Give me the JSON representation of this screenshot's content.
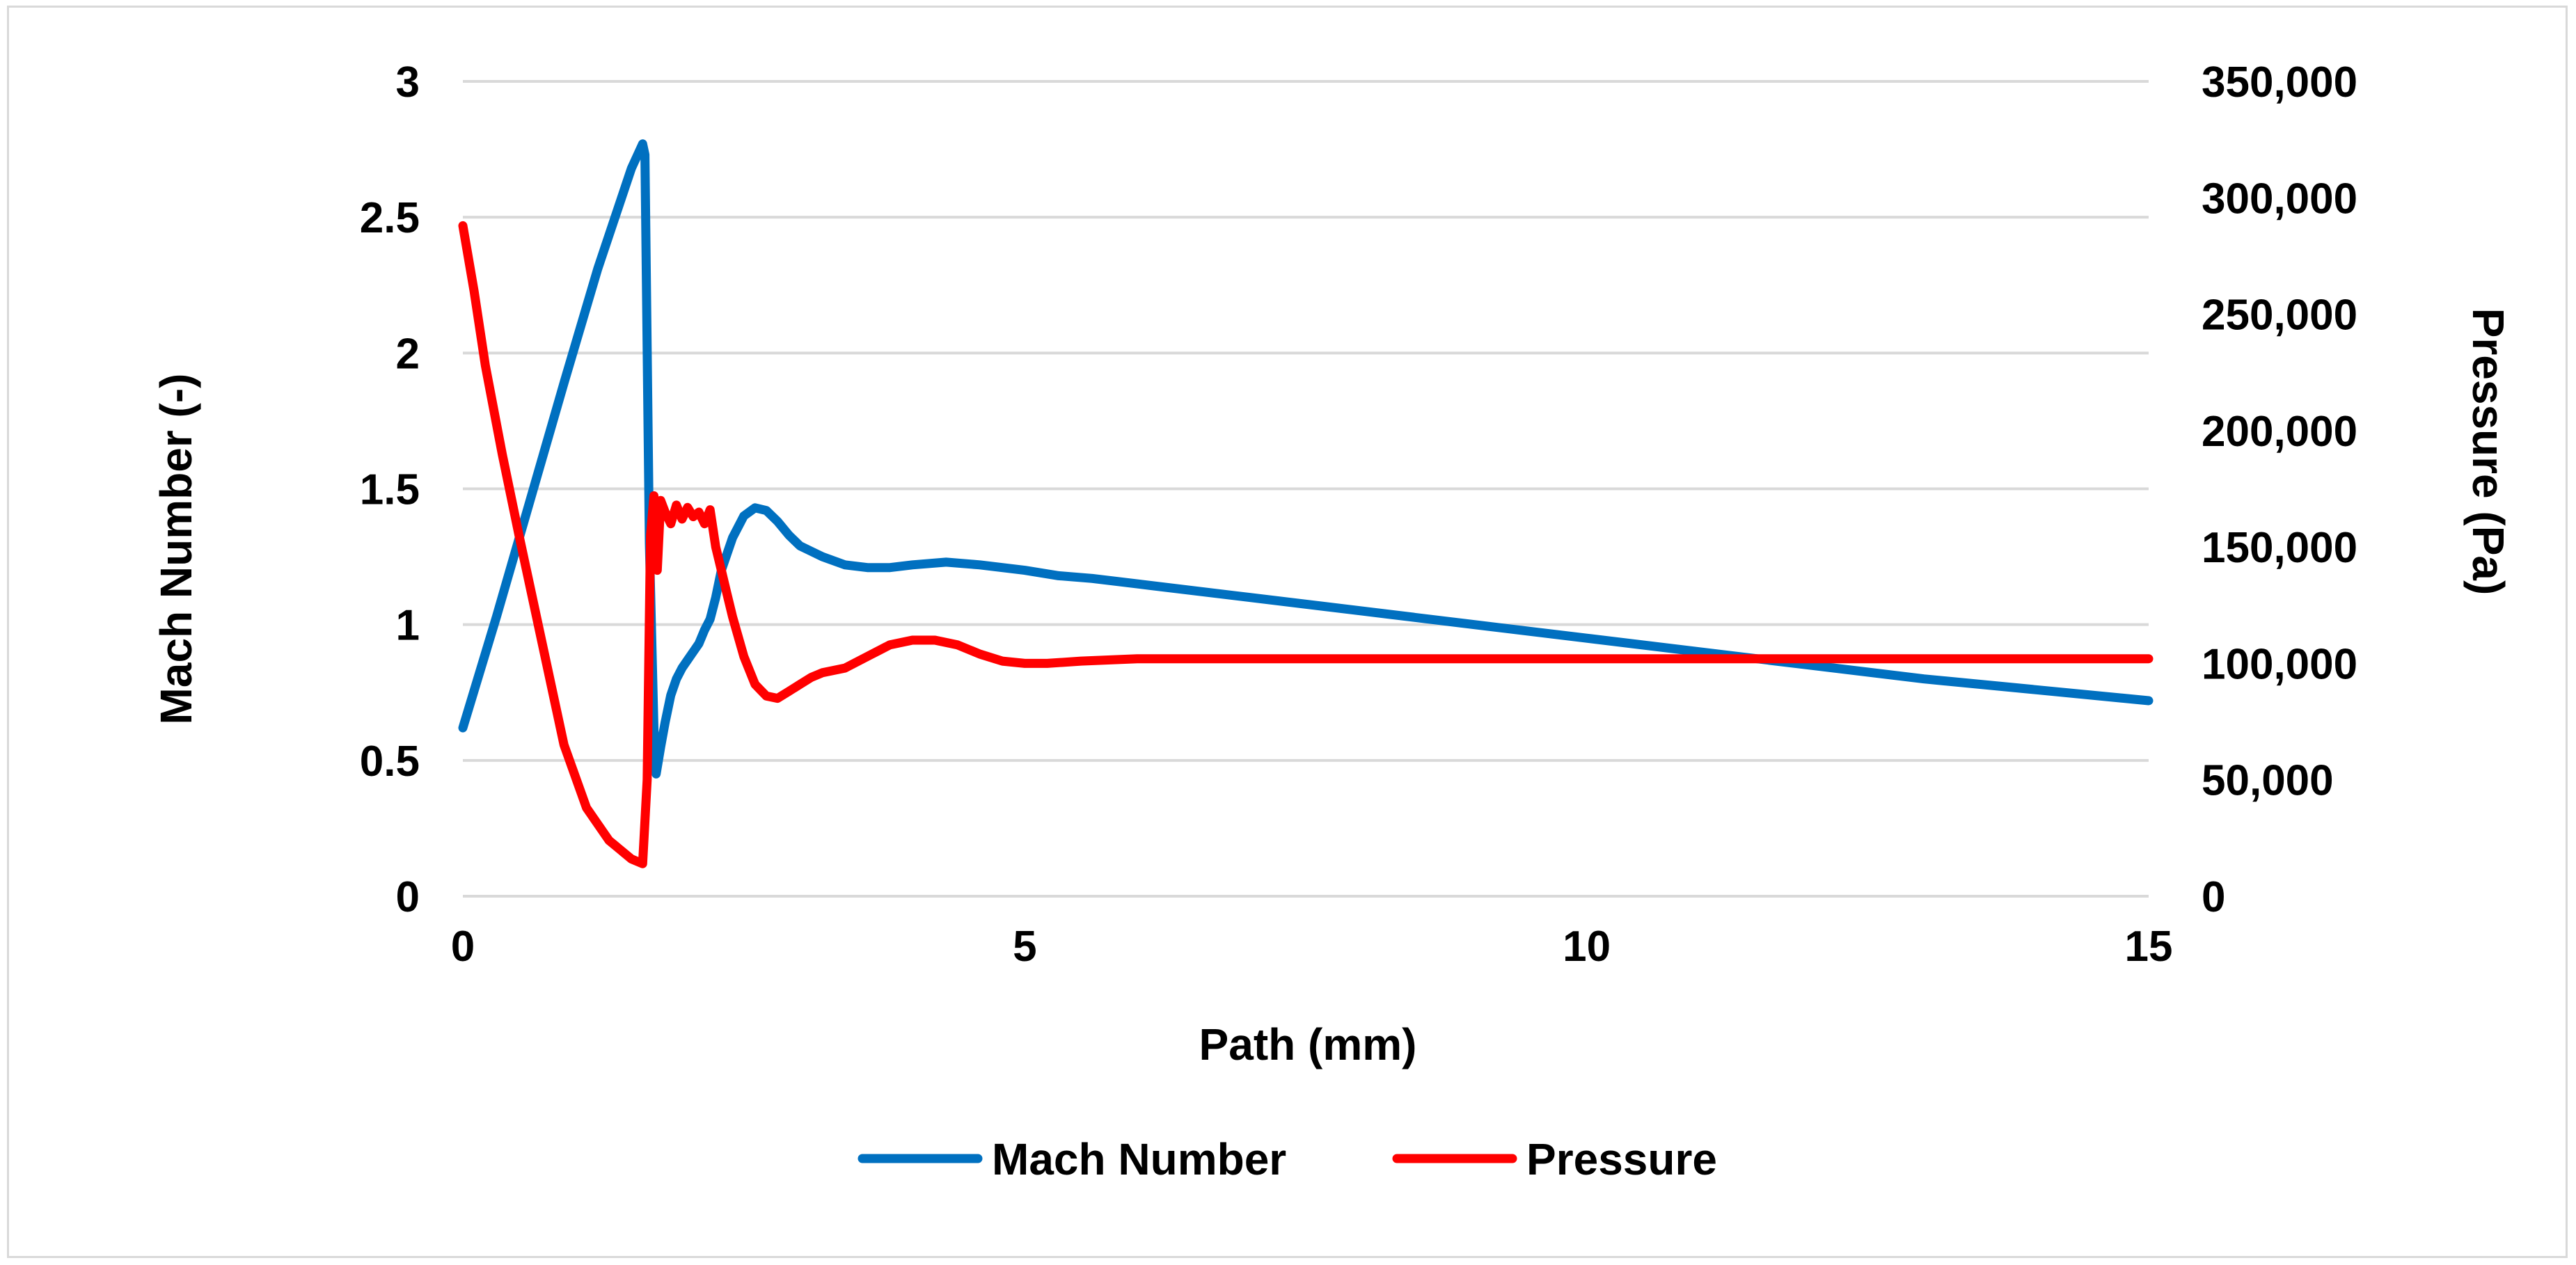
{
  "chart_data": {
    "type": "line",
    "title": "",
    "xlabel": "Path (mm)",
    "ylabel": "Mach Number (-)",
    "y2label": "Pressure (Pa)",
    "xlim": [
      0,
      15
    ],
    "ylim": [
      0,
      3
    ],
    "y2lim": [
      0,
      350000
    ],
    "x_ticks": [
      "0",
      "5",
      "10",
      "15"
    ],
    "y_ticks": [
      "0",
      "0.5",
      "1",
      "1.5",
      "2",
      "2.5",
      "3"
    ],
    "y2_ticks": [
      "0",
      "50,000",
      "100,000",
      "150,000",
      "200,000",
      "250,000",
      "300,000",
      "350,000"
    ],
    "grid": true,
    "legend_position": "bottom-center",
    "series": [
      {
        "name": "Mach Number",
        "axis": "left",
        "color": "#0070C0",
        "x": [
          0,
          0.3,
          0.6,
          0.9,
          1.2,
          1.5,
          1.6,
          1.62,
          1.66,
          1.7,
          1.72,
          1.76,
          1.8,
          1.85,
          1.9,
          1.95,
          2.0,
          2.05,
          2.1,
          2.15,
          2.2,
          2.25,
          2.3,
          2.4,
          2.5,
          2.6,
          2.7,
          2.8,
          2.9,
          3.0,
          3.1,
          3.2,
          3.4,
          3.6,
          3.8,
          4.0,
          4.3,
          4.6,
          5.0,
          5.3,
          5.6,
          6.0,
          7.0,
          8.0,
          9.0,
          10.0,
          11.0,
          12.0,
          13.0,
          14.0,
          15.0
        ],
        "values": [
          0.62,
          1.03,
          1.46,
          1.89,
          2.31,
          2.68,
          2.77,
          2.73,
          1.3,
          0.62,
          0.45,
          0.55,
          0.64,
          0.74,
          0.8,
          0.84,
          0.87,
          0.9,
          0.93,
          0.98,
          1.02,
          1.1,
          1.2,
          1.32,
          1.4,
          1.43,
          1.42,
          1.38,
          1.33,
          1.29,
          1.27,
          1.25,
          1.22,
          1.21,
          1.21,
          1.22,
          1.23,
          1.22,
          1.2,
          1.18,
          1.17,
          1.15,
          1.1,
          1.05,
          1.0,
          0.95,
          0.9,
          0.85,
          0.8,
          0.76,
          0.72
        ]
      },
      {
        "name": "Pressure",
        "axis": "right",
        "color": "#FF0000",
        "x": [
          0,
          0.1,
          0.2,
          0.35,
          0.5,
          0.7,
          0.9,
          1.1,
          1.3,
          1.5,
          1.6,
          1.64,
          1.67,
          1.7,
          1.73,
          1.76,
          1.8,
          1.85,
          1.9,
          1.95,
          2.0,
          2.05,
          2.1,
          2.15,
          2.2,
          2.25,
          2.3,
          2.35,
          2.4,
          2.5,
          2.6,
          2.7,
          2.8,
          2.9,
          3.0,
          3.1,
          3.2,
          3.4,
          3.6,
          3.8,
          4.0,
          4.2,
          4.4,
          4.6,
          4.8,
          5.0,
          5.2,
          5.5,
          6.0,
          6.5,
          7.0,
          8.0,
          10.0,
          12.0,
          15.0
        ],
        "values": [
          288000,
          260000,
          228000,
          190000,
          155000,
          110000,
          65000,
          38000,
          24000,
          16000,
          14000,
          50000,
          155000,
          172000,
          140000,
          170000,
          165000,
          160000,
          168000,
          162000,
          167000,
          163000,
          165000,
          160000,
          166000,
          150000,
          140000,
          130000,
          120000,
          103000,
          91000,
          86000,
          85000,
          88000,
          91000,
          94000,
          96000,
          98000,
          103000,
          108000,
          110000,
          110000,
          108000,
          104000,
          101000,
          100000,
          100000,
          101000,
          102000,
          102000,
          102000,
          102000,
          102000,
          102000,
          102000
        ]
      }
    ]
  }
}
